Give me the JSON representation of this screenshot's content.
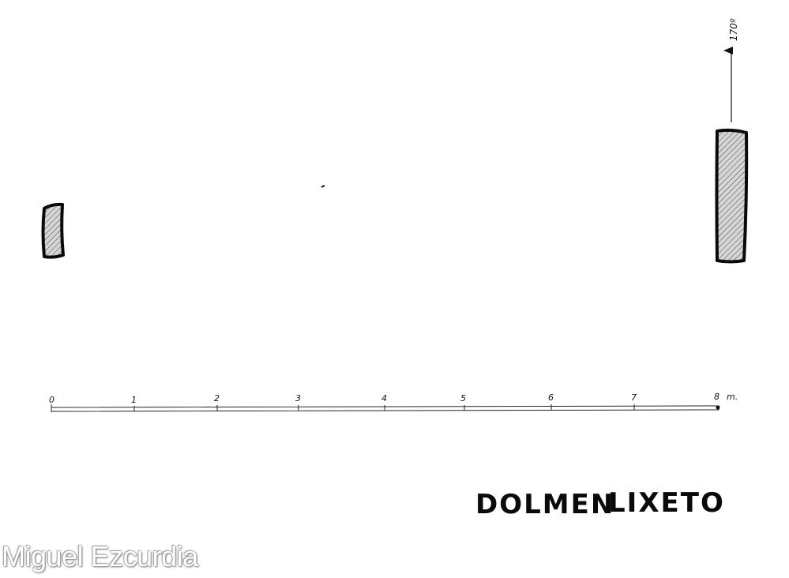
{
  "north_arrow": {
    "bearing": "170º"
  },
  "scale": {
    "ticks": [
      "0",
      "1",
      "2",
      "3",
      "4",
      "5",
      "6",
      "7",
      "8"
    ],
    "unit": "m."
  },
  "title": {
    "word1": "DOLMEN",
    "word2": "LIXETO"
  },
  "watermark": {
    "text": "Miguel Ezcurdia"
  },
  "colors": {
    "ink": "#0a0a0a",
    "hatch_fill": "#d6d6d6"
  }
}
